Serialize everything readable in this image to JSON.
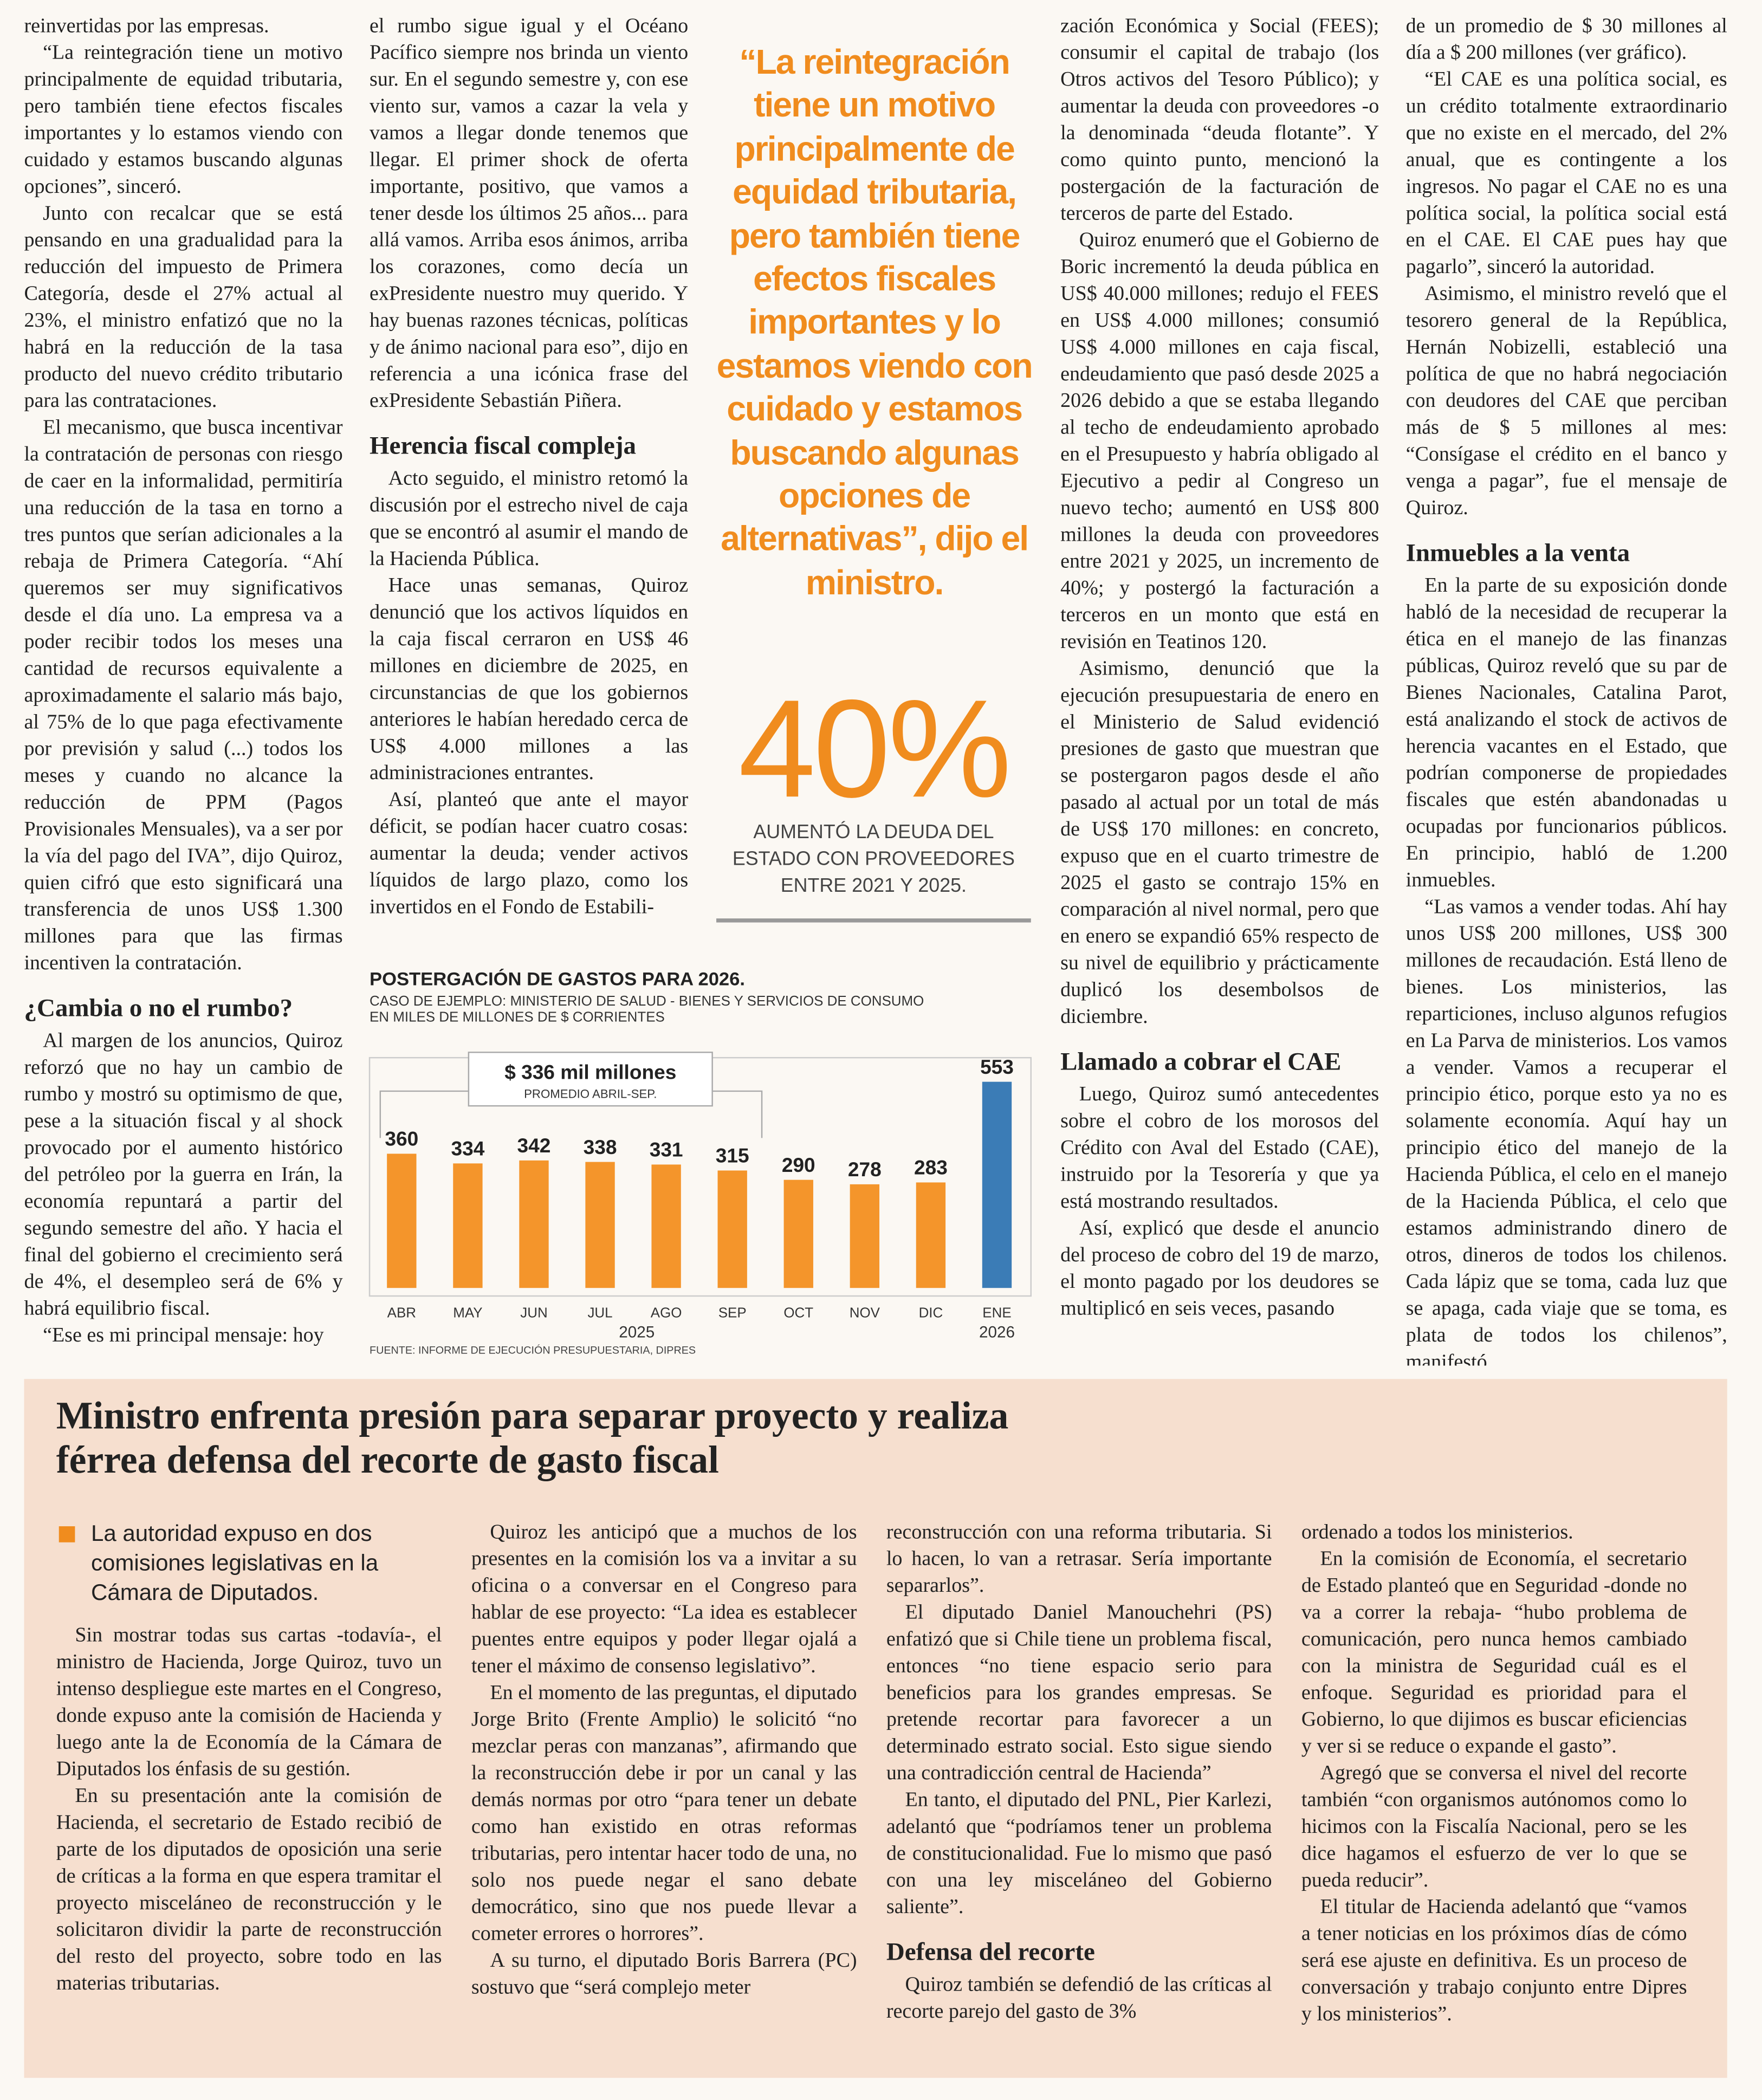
{
  "top_article": {
    "columns": [
      [
        {
          "text": "reinvertidas por las empresas."
        },
        {
          "text": "“La reintegración tiene un motivo principalmente de equidad tributaria, pero también tiene efectos fiscales importantes y lo estamos viendo con cuidado y estamos buscando algunas opciones”, sinceró."
        },
        {
          "text": "Junto con recalcar que se está pensando en una gradualidad para la reducción del impuesto de Primera Categoría, desde el 27% actual al 23%, el ministro enfatizó que no la habrá en la reducción de la tasa producto del nuevo crédito tributario para las contrataciones."
        },
        {
          "text": "El mecanismo, que busca incentivar la contratación de personas con riesgo de caer en la informalidad, permitiría una reducción de la tasa en torno a tres puntos que serían adicionales a la rebaja de Primera Categoría. “Ahí queremos ser muy significativos desde el día uno. La empresa va a poder recibir todos los meses una cantidad de recursos equivalente a aproximadamente el salario más bajo, al 75% de lo que paga efectivamente por previsión y salud (...) todos los meses y cuando no alcance la reducción de PPM (Pagos Provisionales Mensuales), va a ser por la vía del pago del IVA”, dijo Quiroz, quien cifró que esto significará una transferencia de unos US$ 1.300 millones para que las firmas incentiven la contratación."
        },
        {
          "heading": "¿Cambia o no el rumbo?"
        },
        {
          "text": "Al margen de los anuncios, Quiroz reforzó que no hay un cambio de rumbo y mostró su optimismo de que, pese a la situación fiscal y al shock provocado por el aumento histórico del petróleo por la guerra en Irán, la economía repuntará a partir del segundo semestre del año. Y hacia el final del gobierno el crecimiento será de 4%, el desempleo será de 6% y habrá equilibrio fiscal."
        },
        {
          "text": "“Ese es mi principal mensaje: hoy"
        }
      ],
      [
        {
          "text": "el rumbo sigue igual y el Océano Pacífico siempre nos brinda un viento sur. En el segundo semestre y, con ese viento sur, vamos a cazar la vela y vamos a llegar donde tenemos que llegar. El primer shock de oferta importante, positivo, que vamos a tener desde los últimos 25 años... para allá vamos. Arriba esos ánimos, arriba los corazones, como decía un exPresidente nuestro muy querido. Y hay buenas razones técnicas, políticas y de ánimo nacional para eso”, dijo en referencia a una icónica frase del exPresidente Sebastián Piñera."
        },
        {
          "heading": "Herencia fiscal compleja"
        },
        {
          "text": "Acto seguido, el ministro retomó la discusión por el estrecho nivel de caja que se encontró al asumir el mando de la Hacienda Pública."
        },
        {
          "text": "Hace unas semanas, Quiroz denunció que los activos líquidos en la caja fiscal cerraron en US$ 46 millones en diciembre de 2025, en circunstancias de que los gobiernos anteriores le habían heredado cerca de US$ 4.000 millones a las administraciones entrantes."
        },
        {
          "text": "Así, planteó que ante el mayor déficit, se podían hacer cuatro cosas: aumentar la deuda; vender activos líquidos de largo plazo, como los invertidos en el Fondo de Estabili-"
        }
      ],
      [
        {
          "text": "zación Económica y Social (FEES); consumir el capital de trabajo (los Otros activos del Tesoro Público); y aumentar la deuda con proveedores -o la denominada “deuda flotante”. Y como quinto punto, mencionó la postergación de la facturación de terceros de parte del Estado."
        },
        {
          "text": "Quiroz enumeró que el Gobierno de Boric incrementó la deuda pública en US$ 40.000 millones; redujo el FEES en US$ 4.000 millones; consumió US$ 4.000 millones en caja fiscal, endeudamiento que pasó desde 2025 a 2026 debido a que se estaba llegando al techo de endeudamiento aprobado en el Presupuesto y habría obligado al Ejecutivo a pedir al Congreso un nuevo techo; aumentó en US$ 800 millones la deuda con proveedores entre 2021 y 2025, un incremento de 40%; y postergó la facturación a terceros en un monto que está en revisión en Teatinos 120."
        },
        {
          "text": "Asimismo, denunció que la ejecución presupuestaria de enero en el Ministerio de Salud evidenció presiones de gasto que muestran que se postergaron pagos desde el año pasado al actual por un total de más de US$ 170 millones: en concreto, expuso que en el cuarto trimestre de 2025 el gasto se contrajo 15% en comparación al nivel normal, pero que en enero se expandió 65% respecto de su nivel de equilibrio y prácticamente duplicó los desembolsos de diciembre."
        },
        {
          "heading": "Llamado a cobrar el CAE"
        },
        {
          "text": "Luego, Quiroz sumó antecedentes sobre el cobro de los morosos del Crédito con Aval del Estado (CAE), instruido por la Tesorería y que ya está mostrando resultados."
        },
        {
          "text": "Así, explicó que desde el anuncio del proceso de cobro del 19 de marzo, el monto pagado por los deudores se multiplicó en seis veces, pasando"
        }
      ],
      [
        {
          "text": "de un promedio de $ 30 millones al día a $ 200 millones (ver gráfico)."
        },
        {
          "text": "“El CAE es una política social, es un crédito totalmente extraordinario que no existe en el mercado, del 2% anual, que es contingente a los ingresos. No pagar el CAE no es una política social, la política social está en el CAE. El CAE pues hay que pagarlo”, sinceró la autoridad."
        },
        {
          "text": "Asimismo, el ministro reveló que el tesorero general de la República, Hernán Nobizelli, estableció una política de que no habrá negociación con deudores del CAE que perciban más de $ 5 millones al mes: “Consígase el crédito en el banco y venga a pagar”, fue el mensaje de Quiroz."
        },
        {
          "heading": "Inmuebles a la venta"
        },
        {
          "text": "En la parte de su exposición donde habló de la necesidad de recuperar la ética en el manejo de las finanzas públicas, Quiroz reveló que su par de Bienes Nacionales, Catalina Parot, está analizando el stock de activos de herencia vacantes en el Estado, que podrían componerse de propiedades fiscales que estén abandonadas u ocupadas por funcionarios públicos. En principio, habló de 1.200 inmuebles."
        },
        {
          "text": "“Las vamos a vender todas. Ahí hay unos US$ 200 millones, US$ 300 millones de recaudación. Está lleno de bienes. Los ministerios, las reparticiones, incluso algunos refugios en La Parva de ministerios. Los vamos a vender. Vamos a recuperar el principio ético, porque esto ya no es solamente economía. Aquí hay un principio ético del manejo de la Hacienda Pública, el celo en el manejo de la Hacienda Pública, el celo que estamos administrando dinero de otros, dineros de todos los chilenos. Cada lápiz que se toma, cada luz que se apaga, cada viaje que se toma, es plata de todos los chilenos”, manifestó."
        }
      ]
    ]
  },
  "pull_quote": "“La reintegración tiene un motivo principalmente de equidad tributaria, pero también tiene efectos fiscales importantes y lo estamos viendo con cuidado y estamos buscando algunas opciones de alternativas”, dijo el ministro.",
  "highlight": {
    "figure": "40%",
    "caption": "AUMENTÓ LA DEUDA DEL ESTADO CON PROVEEDORES ENTRE 2021 Y 2025."
  },
  "chart_data": {
    "type": "bar",
    "title": "POSTERGACIÓN DE GASTOS PARA 2026.",
    "subtitle": [
      "CASO DE EJEMPLO: MINISTERIO DE SALUD - BIENES Y SERVICIOS DE CONSUMO",
      "EN MILES DE MILLONES DE $ CORRIENTES"
    ],
    "categories": [
      "ABR",
      "MAY",
      "JUN",
      "JUL",
      "AGO",
      "SEP",
      "OCT",
      "NOV",
      "DIC",
      "ENE"
    ],
    "year_labels": [
      "2025",
      "2026"
    ],
    "values": [
      360,
      334,
      342,
      338,
      331,
      315,
      290,
      278,
      283,
      553
    ],
    "colors": [
      "#f4952b",
      "#f4952b",
      "#f4952b",
      "#f4952b",
      "#f4952b",
      "#f4952b",
      "#f4952b",
      "#f4952b",
      "#f4952b",
      "#3b7cb6"
    ],
    "annotation": {
      "title": "$ 336 mil millones",
      "subtitle": "PROMEDIO ABRIL-SEP."
    },
    "source": "FUENTE: INFORME DE EJECUCIÓN PRESUPUESTARIA, DIPRES"
  },
  "bottom_article": {
    "title": "Ministro enfrenta presión para separar proyecto y realiza férrea defensa del recorte de gasto fiscal",
    "lead": "La autoridad expuso en dos comisiones legislativas en la Cámara de Diputados.",
    "columns": [
      [
        {
          "text": "Sin mostrar todas sus cartas -todavía-, el ministro de Hacienda, Jorge Quiroz, tuvo un intenso despliegue este martes en el Congreso, donde expuso ante la comisión de Hacienda y luego ante la de Economía de la Cámara de Diputados los énfasis de su gestión."
        },
        {
          "text": "En su presentación ante la comisión de Hacienda, el secretario de Estado recibió de parte de los diputados de oposición una serie de críticas a la forma en que espera tramitar el proyecto misceláneo de reconstrucción y le solicitaron dividir la parte de reconstrucción del resto del proyecto, sobre todo en las materias tributarias."
        }
      ],
      [
        {
          "text": "Quiroz les anticipó que a muchos de los presentes en la comisión los va a invitar a su oficina o a conversar en el Congreso para hablar de ese proyecto: “La idea es establecer puentes entre equipos y poder llegar ojalá a tener el máximo de consenso legislativo”."
        },
        {
          "text": "En el momento de las preguntas, el diputado Jorge Brito (Frente Amplio) le solicitó “no mezclar peras con manzanas”, afirmando que la reconstrucción debe ir por un canal y las demás normas por otro “para tener un debate como han existido en otras reformas tributarias, pero intentar hacer todo de una, no solo nos puede negar el sano debate democrático, sino que nos puede llevar a cometer errores o horrores”."
        },
        {
          "text": "A su turno, el diputado Boris Barrera (PC) sostuvo que “será complejo meter"
        }
      ],
      [
        {
          "text": "reconstrucción con una reforma tributaria. Si lo hacen, lo van a retrasar. Sería importante separarlos”."
        },
        {
          "text": "El diputado Daniel Manouchehri (PS) enfatizó que si Chile tiene un problema fiscal, entonces “no tiene espacio serio para beneficios para los grandes empresas. Se pretende recortar para favorecer a un determinado estrato social. Esto sigue siendo una contradicción central de Hacienda”"
        },
        {
          "text": "En tanto, el diputado del PNL, Pier Karlezi, adelantó que “podríamos tener un problema de constitucionalidad. Fue lo mismo que pasó con una ley misceláneo del Gobierno saliente”."
        },
        {
          "heading": "Defensa del recorte"
        },
        {
          "text": "Quiroz también se defendió de las críticas al recorte parejo del gasto de 3%"
        }
      ],
      [
        {
          "text": "ordenado a todos los ministerios."
        },
        {
          "text": "En la comisión de Economía, el secretario de Estado planteó que en Seguridad -donde no va a correr la rebaja- “hubo problema de comunicación, pero nunca hemos cambiado con la ministra de Seguridad cuál es el enfoque. Seguridad es prioridad para el Gobierno, lo que dijimos es buscar eficiencias y ver si se reduce o expande el gasto”."
        },
        {
          "text": "Agregó que se conversa el nivel del recorte también “con organismos autónomos como lo hicimos con la Fiscalía Nacional, pero se les dice hagamos el esfuerzo de ver lo que se pueda reducir”."
        },
        {
          "text": "El titular de Hacienda adelantó que “vamos a tener noticias en los próximos días de cómo será ese ajuste en definitiva. Es un proceso de conversación y trabajo conjunto entre Dipres y los ministerios”."
        }
      ]
    ]
  }
}
